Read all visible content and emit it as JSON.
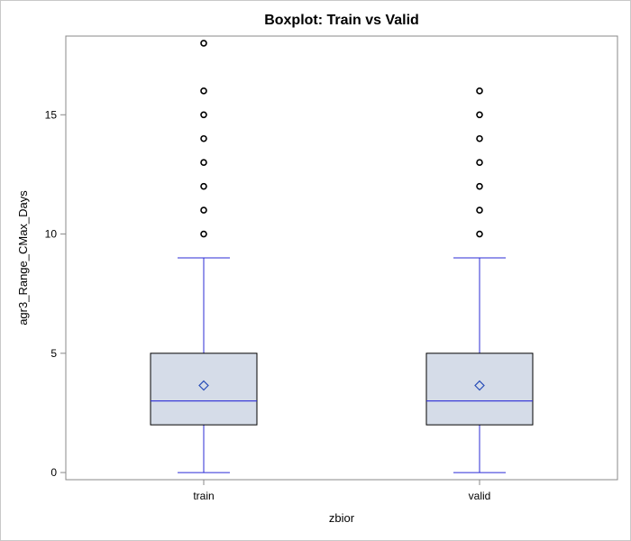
{
  "chart_data": {
    "type": "box",
    "title": "Boxplot: Train vs Valid",
    "xlabel": "zbior",
    "ylabel": "agr3_Range_CMax_Days",
    "categories": [
      "train",
      "valid"
    ],
    "ylim": [
      -0.3,
      18.3
    ],
    "yticks": [
      0,
      5,
      10,
      15
    ],
    "grid": false,
    "legend": "none",
    "series": [
      {
        "category": "train",
        "min": 0,
        "q1": 2,
        "median": 3,
        "q3": 5,
        "max": 9,
        "mean": 3.65,
        "outliers": [
          10,
          11,
          12,
          13,
          14,
          15,
          16,
          18
        ]
      },
      {
        "category": "valid",
        "min": 0,
        "q1": 2,
        "median": 3,
        "q3": 5,
        "max": 9,
        "mean": 3.65,
        "outliers": [
          10,
          11,
          12,
          13,
          14,
          15,
          16
        ]
      }
    ],
    "colors": {
      "box_fill": "#d5dce8",
      "box_edge": "#000000",
      "whisker": "#2b2bd6",
      "median": "#2b2bd6",
      "mean_marker": "#2b4fb8",
      "outlier": "#000000",
      "axis": "#888888"
    }
  }
}
